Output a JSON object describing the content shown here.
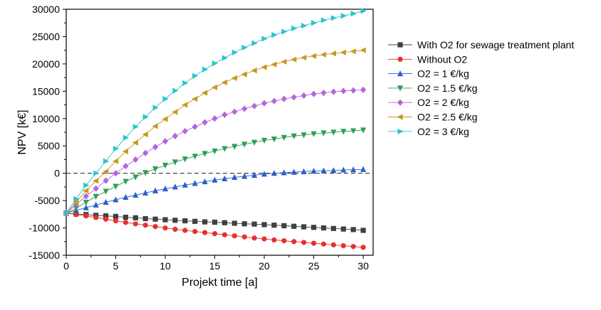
{
  "chart_data": {
    "type": "line",
    "xlabel": "Projekt time [a]",
    "ylabel": "NPV [k€]",
    "xlim": [
      0,
      31
    ],
    "ylim": [
      -15000,
      30000
    ],
    "xticks": [
      "0",
      "5",
      "10",
      "15",
      "20",
      "25",
      "30"
    ],
    "yticks": [
      "30000",
      "25000",
      "20000",
      "15000",
      "10000",
      "5000",
      "0",
      "-5000",
      "-10000",
      "-15000"
    ],
    "grid": false,
    "reference_line": {
      "y": 0,
      "style": "dashed"
    },
    "legend_position": "right",
    "x": [
      0,
      1,
      2,
      3,
      4,
      5,
      6,
      7,
      8,
      9,
      10,
      11,
      12,
      13,
      14,
      15,
      16,
      17,
      18,
      19,
      20,
      21,
      22,
      23,
      24,
      25,
      26,
      27,
      28,
      29,
      30
    ],
    "series": [
      {
        "name": "With O2 for sewage treatment plant",
        "color": "#404040",
        "marker": "square",
        "values": [
          -7300,
          -7450,
          -7550,
          -7700,
          -7800,
          -7900,
          -8050,
          -8150,
          -8300,
          -8400,
          -8500,
          -8600,
          -8700,
          -8800,
          -8900,
          -8950,
          -9050,
          -9150,
          -9250,
          -9300,
          -9400,
          -9500,
          -9600,
          -9700,
          -9800,
          -9900,
          -10000,
          -10100,
          -10200,
          -10300,
          -10450
        ]
      },
      {
        "name": "Without O2",
        "color": "#e8302a",
        "marker": "circle",
        "values": [
          -7300,
          -7550,
          -7800,
          -8100,
          -8400,
          -8700,
          -9000,
          -9250,
          -9500,
          -9750,
          -10000,
          -10250,
          -10450,
          -10650,
          -10850,
          -11050,
          -11250,
          -11450,
          -11650,
          -11850,
          -12000,
          -12200,
          -12350,
          -12500,
          -12650,
          -12800,
          -12950,
          -13100,
          -13250,
          -13400,
          -13550
        ]
      },
      {
        "name": "O2 = 1 €/kg",
        "color": "#2a5fcc",
        "marker": "triangle-up",
        "values": [
          -7300,
          -6800,
          -6300,
          -5800,
          -5300,
          -4850,
          -4400,
          -4000,
          -3600,
          -3200,
          -2850,
          -2500,
          -2150,
          -1850,
          -1550,
          -1250,
          -1000,
          -750,
          -550,
          -350,
          -150,
          0,
          100,
          200,
          300,
          400,
          450,
          500,
          600,
          650,
          700
        ]
      },
      {
        "name": "O2 = 1.5 €/kg",
        "color": "#2e9e55",
        "marker": "triangle-down",
        "values": [
          -7300,
          -6400,
          -5300,
          -4250,
          -3300,
          -2400,
          -1500,
          -700,
          100,
          800,
          1450,
          2050,
          2600,
          3100,
          3600,
          4050,
          4500,
          4900,
          5300,
          5650,
          6000,
          6250,
          6550,
          6800,
          7000,
          7200,
          7350,
          7500,
          7650,
          7750,
          7900
        ]
      },
      {
        "name": "O2 = 2 €/kg",
        "color": "#b565dd",
        "marker": "diamond",
        "values": [
          -7300,
          -5700,
          -4200,
          -2800,
          -1350,
          0,
          1300,
          2500,
          3700,
          4800,
          5850,
          6800,
          7700,
          8500,
          9300,
          10000,
          10700,
          11250,
          11800,
          12300,
          12800,
          13200,
          13600,
          13900,
          14200,
          14500,
          14700,
          14900,
          15050,
          15150,
          15250
        ]
      },
      {
        "name": "O2 = 2.5 €/kg",
        "color": "#c89820",
        "marker": "triangle-left",
        "values": [
          -7300,
          -5300,
          -3200,
          -1400,
          300,
          2200,
          4000,
          5600,
          7100,
          8600,
          9900,
          11200,
          12500,
          13600,
          14700,
          15700,
          16600,
          17400,
          18100,
          18800,
          19400,
          19900,
          20400,
          20800,
          21150,
          21450,
          21700,
          21900,
          22100,
          22300,
          22500
        ]
      },
      {
        "name": "O2 = 3 €/kg",
        "color": "#2ac4cc",
        "marker": "triangle-right",
        "values": [
          -7300,
          -4700,
          -2200,
          0,
          2200,
          4500,
          6500,
          8500,
          10300,
          12000,
          13600,
          15100,
          16500,
          17800,
          19000,
          20100,
          21100,
          22100,
          23000,
          23800,
          24600,
          25300,
          25900,
          26500,
          27000,
          27500,
          28000,
          28400,
          28800,
          29200,
          29700
        ]
      }
    ]
  }
}
